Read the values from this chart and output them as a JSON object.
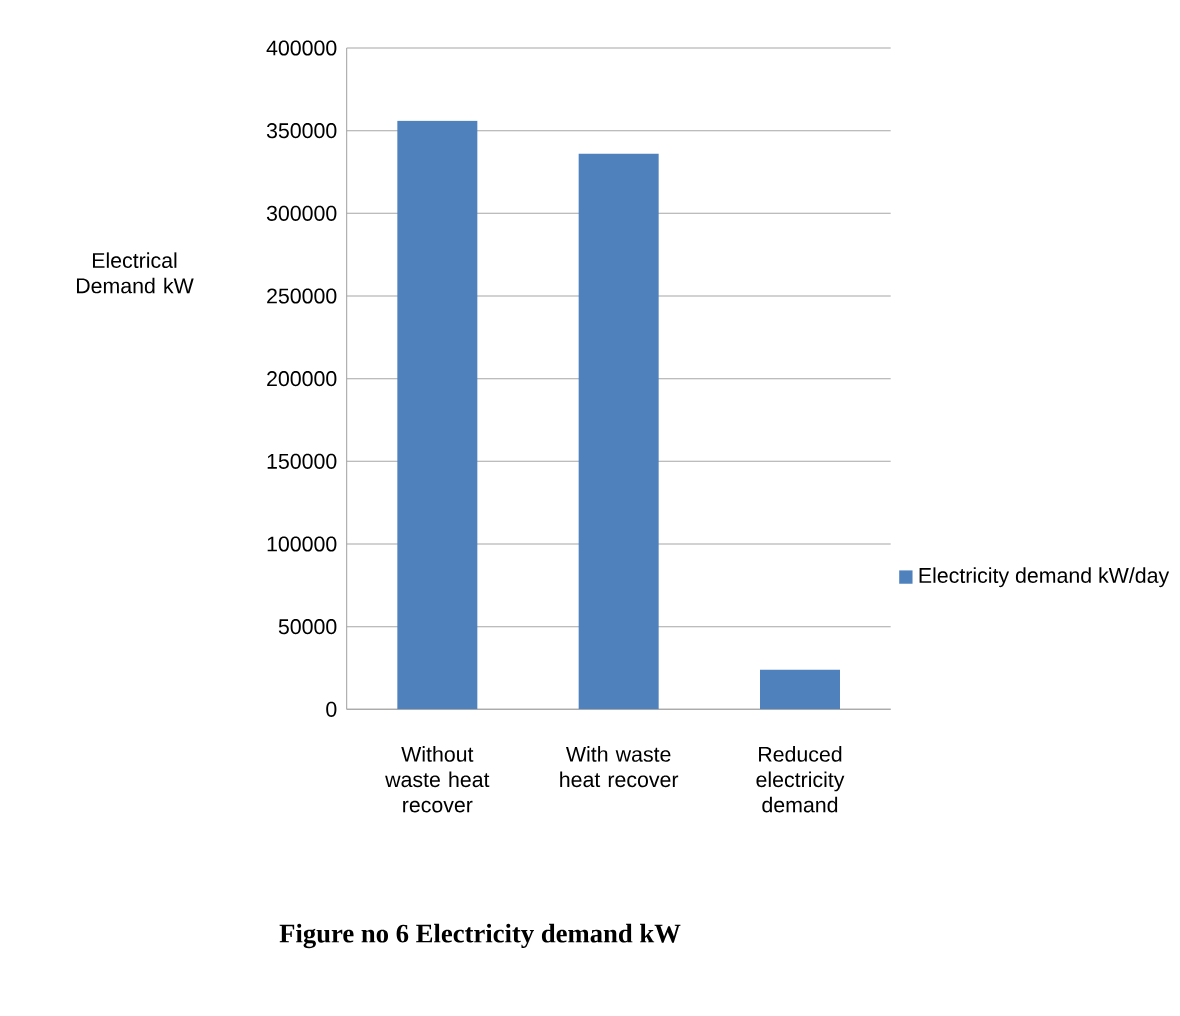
{
  "chart_data": {
    "type": "bar",
    "title": "Figure no 6 Electricity demand kW",
    "ylabel": "Electrical Demand kW",
    "categories": [
      "Without waste heat recover",
      "With waste heat recover",
      "Reduced electricity demand"
    ],
    "series": [
      {
        "name": "Electricity demand kW/day",
        "color": "#4f81bd",
        "values": [
          356000,
          336000,
          24000
        ]
      }
    ],
    "ylim": [
      0,
      400000
    ],
    "yticks": [
      0,
      50000,
      100000,
      150000,
      200000,
      250000,
      300000,
      350000,
      400000
    ],
    "grid": "y",
    "legend": "right"
  }
}
